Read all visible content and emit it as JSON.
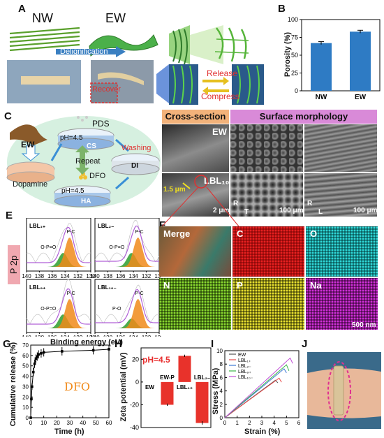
{
  "panels": {
    "A": {
      "letter": "A",
      "nw": "NW",
      "ew": "EW",
      "delig": "Delignification",
      "recover": "Recover",
      "release": "Release",
      "compress": "Compress"
    },
    "B": {
      "letter": "B",
      "ylabel": "Porosity (%)",
      "yticks": [
        "0",
        "25",
        "50",
        "75",
        "100"
      ]
    },
    "C": {
      "letter": "C",
      "pds": "PDS",
      "ph": "pH=4.5",
      "cs": "CS",
      "ew": "EW",
      "washing": "Washing",
      "repeat": "Repeat",
      "di": "DI",
      "dopamine": "Dopamine",
      "dfo": "DFO",
      "ph2": "pH=4.5",
      "ha": "HA"
    },
    "D": {
      "letter": "D",
      "cross": "Cross-section",
      "surface": "Surface morphology",
      "ew": "EW",
      "lbl": "LBL₁₀",
      "thick": "1.5 μm",
      "s1": "2 μm",
      "s2": "100 μm",
      "s3": "100 μm",
      "axisR": "R",
      "axisT": "T",
      "axisL": "L"
    },
    "E": {
      "letter": "E",
      "p2p": "P 2p",
      "xlabel": "Binding energy (eV)",
      "xticks": [
        "140",
        "138",
        "136",
        "134",
        "132",
        "130"
      ],
      "subs": [
        {
          "name": "LBL₁₊",
          "pc": "P-C",
          "opo": "O-P=O"
        },
        {
          "name": "LBL₂₋",
          "pc": "P-C",
          "opo": "O-P=O"
        },
        {
          "name": "LBL₉₊",
          "pc": "P-C",
          "opo": "O-P=O"
        },
        {
          "name": "LBL₁₀₋",
          "pc": "P-C",
          "opo": "P-O"
        }
      ]
    },
    "F": {
      "letter": "F",
      "maps": [
        "Merge",
        "C",
        "O",
        "N",
        "P",
        "Na"
      ],
      "scale": "500 nm"
    },
    "G": {
      "letter": "G",
      "ylabel": "Cumulative release (%)",
      "xlabel": "Time (h)",
      "drug": "DFO",
      "xticks": [
        "0",
        "10",
        "20",
        "30",
        "40",
        "50",
        "60"
      ],
      "yticks": [
        "0",
        "10",
        "20",
        "30",
        "40",
        "50",
        "60",
        "70"
      ]
    },
    "H": {
      "letter": "H",
      "ylabel": "Zeta potential (mV)",
      "ph": "pH=4.5",
      "yticks": [
        "20",
        "0",
        "-20",
        "-40"
      ]
    },
    "I": {
      "letter": "I",
      "ylabel": "Stress (MPa)",
      "xlabel": "Strain (%)",
      "xticks": [
        "0",
        "1",
        "2",
        "3",
        "4",
        "5",
        "6"
      ],
      "yticks": [
        "0",
        "2",
        "4",
        "6",
        "8",
        "10"
      ]
    },
    "J": {
      "letter": "J"
    }
  },
  "chart_data": [
    {
      "type": "bar",
      "panel": "B",
      "categories": [
        "NW",
        "EW"
      ],
      "values": [
        67,
        83
      ],
      "errors": [
        2,
        2
      ],
      "ylabel": "Porosity (%)",
      "ylim": [
        0,
        100
      ],
      "color": "#2e7bc4"
    },
    {
      "type": "line",
      "panel": "G",
      "x": [
        0,
        0.5,
        1,
        2,
        3,
        4,
        5,
        6,
        8,
        10,
        24,
        48,
        60
      ],
      "y": [
        0,
        18,
        30,
        44,
        52,
        57,
        59,
        61,
        62,
        63,
        64,
        65,
        66
      ],
      "errors": [
        0,
        2,
        3,
        4,
        4,
        4,
        4,
        4,
        4,
        4,
        4,
        4,
        4
      ],
      "xlabel": "Time (h)",
      "ylabel": "Cumulative release (%)",
      "xlim": [
        0,
        60
      ],
      "ylim": [
        0,
        70
      ]
    },
    {
      "type": "bar",
      "panel": "H",
      "categories": [
        "EW",
        "EW-P",
        "LBL₁₊",
        "LBL₂₋"
      ],
      "values": [
        0,
        -20,
        23,
        -36
      ],
      "errors": [
        0,
        1,
        1,
        1.5
      ],
      "ylabel": "Zeta potential (mV)",
      "ylim": [
        -40,
        30
      ],
      "color": "#e8322b"
    },
    {
      "type": "line",
      "panel": "I",
      "xlabel": "Strain (%)",
      "ylabel": "Stress (MPa)",
      "xlim": [
        0,
        6
      ],
      "ylim": [
        0,
        10
      ],
      "series": [
        {
          "name": "EW",
          "color": "#555555",
          "x": [
            0,
            4.1,
            4.3
          ],
          "y": [
            0,
            5.6,
            5.2
          ]
        },
        {
          "name": "LBL₁₊",
          "color": "#e84b4b",
          "x": [
            0,
            4.4,
            4.6
          ],
          "y": [
            0,
            5.9,
            5.3
          ]
        },
        {
          "name": "LBL₂₋",
          "color": "#3e78d6",
          "x": [
            0,
            4.8,
            5.0
          ],
          "y": [
            0,
            7.3,
            6.7
          ]
        },
        {
          "name": "LBL₉₊",
          "color": "#3bb44a",
          "x": [
            0,
            5.0,
            5.2
          ],
          "y": [
            0,
            7.9,
            7.0
          ]
        },
        {
          "name": "LBL₁₀₋",
          "color": "#c04bd6",
          "x": [
            0,
            5.3,
            5.5
          ],
          "y": [
            0,
            8.9,
            8.1
          ]
        }
      ]
    }
  ]
}
